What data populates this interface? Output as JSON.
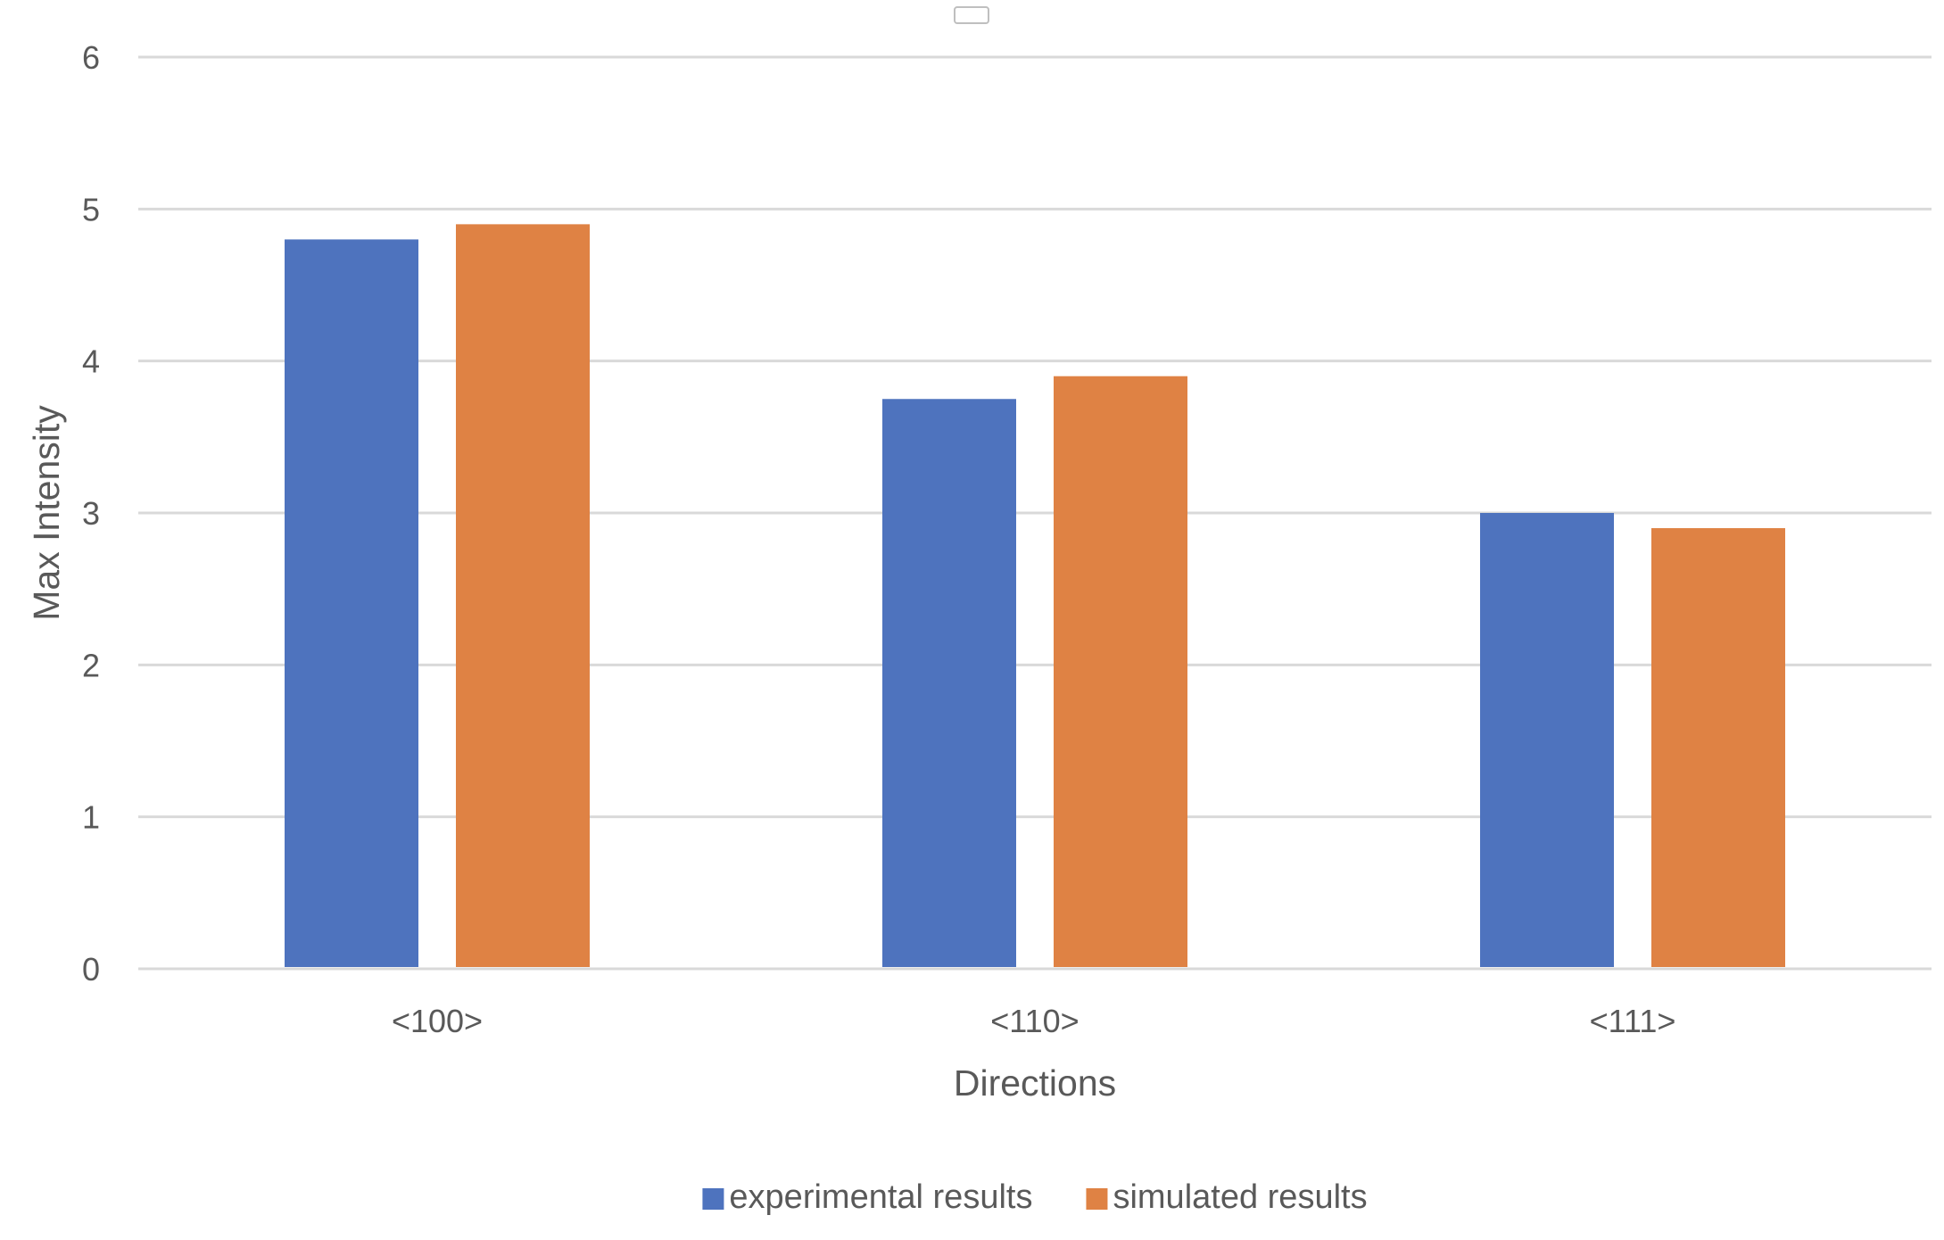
{
  "chart_data": {
    "type": "bar",
    "title": "",
    "xlabel": "Directions",
    "ylabel": "Max Intensity",
    "categories": [
      "<100>",
      "<110>",
      "<111>"
    ],
    "series": [
      {
        "name": "experimental results",
        "values": [
          4.8,
          3.75,
          3.0
        ],
        "color": "#4E73BE"
      },
      {
        "name": "simulated results",
        "values": [
          4.9,
          3.9,
          2.9
        ],
        "color": "#DF8244"
      }
    ],
    "ylim": [
      0,
      6
    ],
    "yticks": [
      0,
      1,
      2,
      3,
      4,
      5,
      6
    ],
    "grid": true,
    "legend_position": "bottom"
  }
}
